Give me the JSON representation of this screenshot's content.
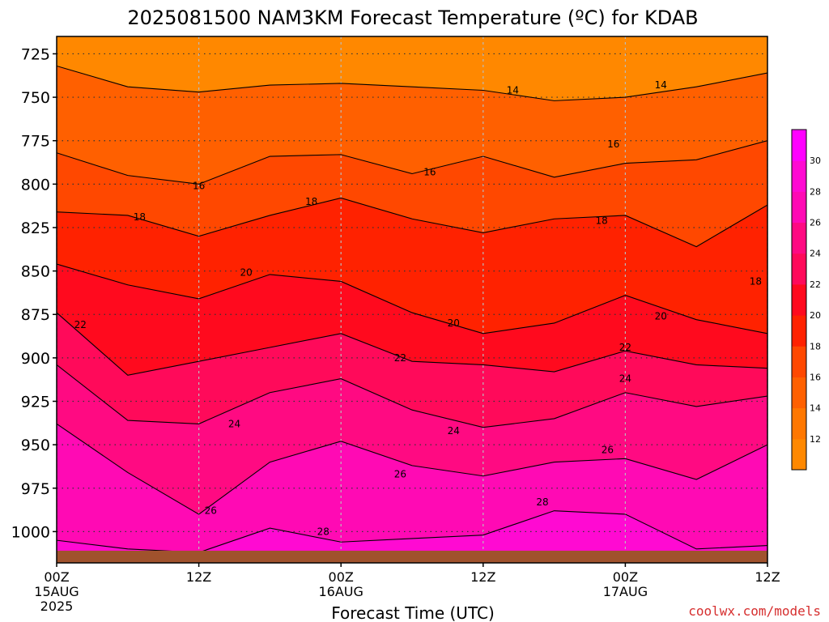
{
  "chart_data": {
    "type": "heatmap",
    "title": "2025081500 NAM3KM Forecast Temperature (ºC) for KDAB",
    "xlabel": "Forecast Time (UTC)",
    "ylabel": "",
    "watermark": "coolwx.com/models",
    "x_ticks": [
      {
        "hours": 0,
        "label": "00Z",
        "date": "15AUG",
        "year": "2025"
      },
      {
        "hours": 12,
        "label": "12Z",
        "date": "",
        "year": ""
      },
      {
        "hours": 24,
        "label": "00Z",
        "date": "16AUG",
        "year": ""
      },
      {
        "hours": 36,
        "label": "12Z",
        "date": "",
        "year": ""
      },
      {
        "hours": 48,
        "label": "00Z",
        "date": "17AUG",
        "year": ""
      },
      {
        "hours": 60,
        "label": "12Z",
        "date": "",
        "year": ""
      }
    ],
    "xlim": [
      0,
      60
    ],
    "y_ticks": [
      725,
      750,
      775,
      800,
      825,
      850,
      875,
      900,
      925,
      950,
      975,
      1000
    ],
    "ylim": [
      715,
      1018
    ],
    "y_reversed": true,
    "surface_pressure_hpa": 1011,
    "colorbar": {
      "labels": [
        12,
        14,
        16,
        18,
        20,
        22,
        24,
        26,
        28,
        30
      ],
      "colors": [
        "#ff8800",
        "#ff7700",
        "#ff6000",
        "#ff4800",
        "#ff2200",
        "#ff0a1e",
        "#ff0a5a",
        "#ff0a82",
        "#ff0ab4",
        "#ff0ad2",
        "#ff00ff"
      ]
    },
    "series": [
      {
        "name": "14",
        "values": [
          [
            0,
            732
          ],
          [
            6,
            744
          ],
          [
            12,
            747
          ],
          [
            18,
            743
          ],
          [
            24,
            742
          ],
          [
            30,
            744
          ],
          [
            36,
            746
          ],
          [
            42,
            752
          ],
          [
            48,
            750
          ],
          [
            54,
            744
          ],
          [
            60,
            736
          ]
        ]
      },
      {
        "name": "16",
        "values": [
          [
            0,
            782
          ],
          [
            6,
            795
          ],
          [
            12,
            800
          ],
          [
            18,
            784
          ],
          [
            24,
            783
          ],
          [
            30,
            794
          ],
          [
            36,
            784
          ],
          [
            42,
            796
          ],
          [
            48,
            788
          ],
          [
            54,
            786
          ],
          [
            60,
            775
          ]
        ]
      },
      {
        "name": "18",
        "values": [
          [
            0,
            816
          ],
          [
            6,
            818
          ],
          [
            12,
            830
          ],
          [
            18,
            818
          ],
          [
            24,
            808
          ],
          [
            30,
            820
          ],
          [
            36,
            828
          ],
          [
            42,
            820
          ],
          [
            48,
            818
          ],
          [
            54,
            836
          ],
          [
            60,
            812
          ]
        ]
      },
      {
        "name": "20",
        "values": [
          [
            0,
            846
          ],
          [
            6,
            858
          ],
          [
            12,
            866
          ],
          [
            18,
            852
          ],
          [
            24,
            856
          ],
          [
            30,
            874
          ],
          [
            36,
            886
          ],
          [
            42,
            880
          ],
          [
            48,
            864
          ],
          [
            54,
            878
          ],
          [
            60,
            886
          ]
        ]
      },
      {
        "name": "22",
        "values": [
          [
            0,
            874
          ],
          [
            6,
            910
          ],
          [
            12,
            902
          ],
          [
            18,
            894
          ],
          [
            24,
            886
          ],
          [
            30,
            902
          ],
          [
            36,
            904
          ],
          [
            42,
            908
          ],
          [
            48,
            896
          ],
          [
            54,
            904
          ],
          [
            60,
            906
          ]
        ]
      },
      {
        "name": "24",
        "values": [
          [
            0,
            904
          ],
          [
            6,
            936
          ],
          [
            12,
            938
          ],
          [
            18,
            920
          ],
          [
            24,
            912
          ],
          [
            30,
            930
          ],
          [
            36,
            940
          ],
          [
            42,
            935
          ],
          [
            48,
            920
          ],
          [
            54,
            928
          ],
          [
            60,
            922
          ]
        ]
      },
      {
        "name": "26",
        "values": [
          [
            0,
            938
          ],
          [
            6,
            966
          ],
          [
            12,
            990
          ],
          [
            18,
            960
          ],
          [
            24,
            948
          ],
          [
            30,
            962
          ],
          [
            36,
            968
          ],
          [
            42,
            960
          ],
          [
            48,
            958
          ],
          [
            54,
            970
          ],
          [
            60,
            950
          ]
        ]
      },
      {
        "name": "28",
        "values": [
          [
            0,
            1005
          ],
          [
            6,
            1010
          ],
          [
            12,
            1012
          ],
          [
            18,
            998
          ],
          [
            24,
            1006
          ],
          [
            30,
            1004
          ],
          [
            36,
            1002
          ],
          [
            42,
            988
          ],
          [
            48,
            990
          ],
          [
            54,
            1010
          ],
          [
            60,
            1008
          ]
        ]
      }
    ],
    "contour_labels": [
      {
        "value": "14",
        "x": 38.5,
        "p": 746
      },
      {
        "value": "14",
        "x": 51.0,
        "p": 743
      },
      {
        "value": "16",
        "x": 12.0,
        "p": 801
      },
      {
        "value": "16",
        "x": 31.5,
        "p": 793
      },
      {
        "value": "16",
        "x": 47.0,
        "p": 777
      },
      {
        "value": "18",
        "x": 7.0,
        "p": 819
      },
      {
        "value": "18",
        "x": 21.5,
        "p": 810
      },
      {
        "value": "18",
        "x": 46.0,
        "p": 821
      },
      {
        "value": "18",
        "x": 59.0,
        "p": 856
      },
      {
        "value": "20",
        "x": 16.0,
        "p": 851
      },
      {
        "value": "20",
        "x": 33.5,
        "p": 880
      },
      {
        "value": "20",
        "x": 51.0,
        "p": 876
      },
      {
        "value": "22",
        "x": 2.0,
        "p": 881
      },
      {
        "value": "22",
        "x": 29.0,
        "p": 900
      },
      {
        "value": "22",
        "x": 48.0,
        "p": 894
      },
      {
        "value": "24",
        "x": 15.0,
        "p": 938
      },
      {
        "value": "24",
        "x": 33.5,
        "p": 942
      },
      {
        "value": "24",
        "x": 48.0,
        "p": 912
      },
      {
        "value": "26",
        "x": 13.0,
        "p": 988
      },
      {
        "value": "26",
        "x": 29.0,
        "p": 967
      },
      {
        "value": "26",
        "x": 46.5,
        "p": 953
      },
      {
        "value": "28",
        "x": 22.5,
        "p": 1000
      },
      {
        "value": "28",
        "x": 41.0,
        "p": 983
      }
    ]
  }
}
